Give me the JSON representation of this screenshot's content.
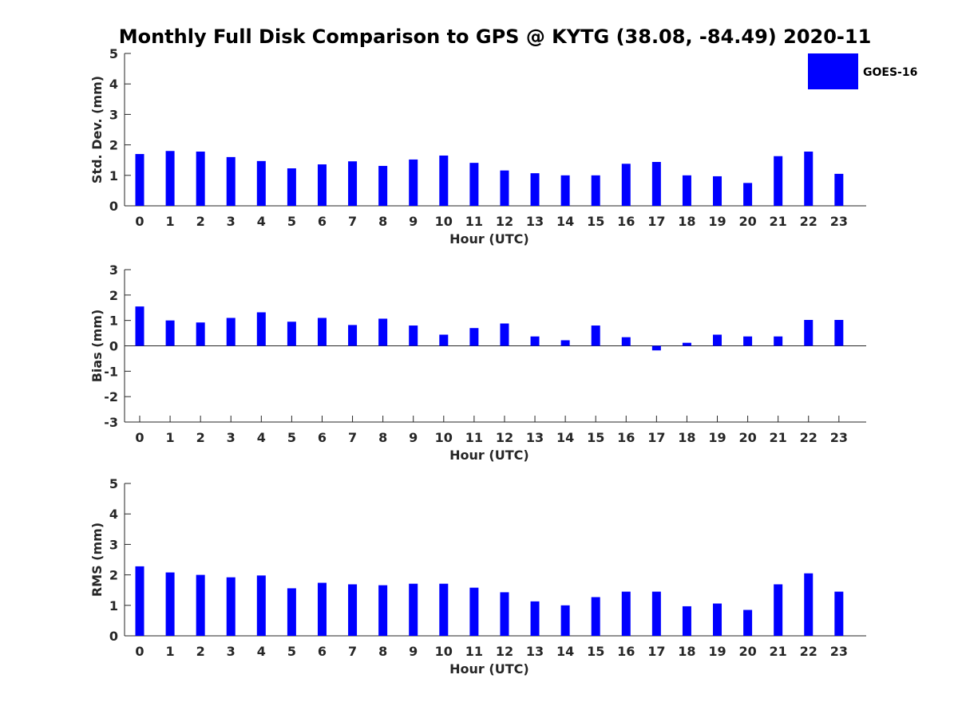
{
  "chart_data": {
    "title": "Monthly Full Disk Comparison to GPS @ KYTG (38.08, -84.49) 2020-11",
    "type": "bar",
    "legend": {
      "placement": "top-right",
      "entries": [
        {
          "name": "GOES-16",
          "color": "#0000ff"
        }
      ]
    },
    "subplots": [
      {
        "id": "stddev",
        "type": "bar",
        "xlabel": "Hour (UTC)",
        "ylabel": "Std. Dev. (mm)",
        "ylim": [
          0,
          5
        ],
        "yticks": [
          0,
          1,
          2,
          3,
          4,
          5
        ],
        "categories": [
          "0",
          "1",
          "2",
          "3",
          "4",
          "5",
          "6",
          "7",
          "8",
          "9",
          "10",
          "11",
          "12",
          "13",
          "14",
          "15",
          "16",
          "17",
          "18",
          "19",
          "20",
          "21",
          "22",
          "23"
        ],
        "series": [
          {
            "name": "GOES-16",
            "color": "#0000ff",
            "values": [
              1.7,
              1.8,
              1.78,
              1.6,
              1.47,
              1.23,
              1.36,
              1.46,
              1.31,
              1.52,
              1.65,
              1.41,
              1.16,
              1.07,
              1.0,
              1.0,
              1.38,
              1.44,
              1.0,
              0.97,
              0.75,
              1.63,
              1.78,
              1.05
            ]
          }
        ]
      },
      {
        "id": "bias",
        "type": "bar",
        "xlabel": "Hour (UTC)",
        "ylabel": "Bias (mm)",
        "ylim": [
          -3,
          3
        ],
        "yticks": [
          -3,
          -2,
          -1,
          0,
          1,
          2,
          3
        ],
        "categories": [
          "0",
          "1",
          "2",
          "3",
          "4",
          "5",
          "6",
          "7",
          "8",
          "9",
          "10",
          "11",
          "12",
          "13",
          "14",
          "15",
          "16",
          "17",
          "18",
          "19",
          "20",
          "21",
          "22",
          "23"
        ],
        "series": [
          {
            "name": "GOES-16",
            "color": "#0000ff",
            "values": [
              1.55,
              1.0,
              0.92,
              1.1,
              1.32,
              0.95,
              1.1,
              0.82,
              1.07,
              0.8,
              0.44,
              0.7,
              0.88,
              0.37,
              0.22,
              0.8,
              0.34,
              -0.18,
              0.12,
              0.44,
              0.37,
              0.37,
              1.02,
              1.02
            ]
          }
        ]
      },
      {
        "id": "rms",
        "type": "bar",
        "xlabel": "Hour (UTC)",
        "ylabel": "RMS (mm)",
        "ylim": [
          0,
          5
        ],
        "yticks": [
          0,
          1,
          2,
          3,
          4,
          5
        ],
        "categories": [
          "0",
          "1",
          "2",
          "3",
          "4",
          "5",
          "6",
          "7",
          "8",
          "9",
          "10",
          "11",
          "12",
          "13",
          "14",
          "15",
          "16",
          "17",
          "18",
          "19",
          "20",
          "21",
          "22",
          "23"
        ],
        "series": [
          {
            "name": "GOES-16",
            "color": "#0000ff",
            "values": [
              2.28,
              2.08,
              2.0,
              1.92,
              1.98,
              1.56,
              1.74,
              1.69,
              1.66,
              1.71,
              1.71,
              1.58,
              1.43,
              1.13,
              1.0,
              1.27,
              1.45,
              1.45,
              0.97,
              1.06,
              0.85,
              1.69,
              2.05,
              1.45
            ]
          }
        ]
      }
    ]
  }
}
